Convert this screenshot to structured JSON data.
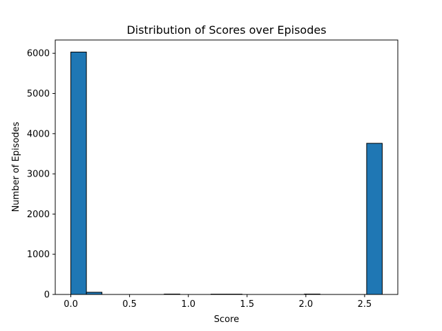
{
  "chart_data": {
    "type": "bar",
    "title": "Distribution of Scores over Episodes",
    "xlabel": "Score",
    "ylabel": "Number of Episodes",
    "xlim": [
      -0.1325,
      2.7825
    ],
    "ylim": [
      0,
      6330
    ],
    "xticks": [
      0.0,
      0.5,
      1.0,
      1.5,
      2.0,
      2.5
    ],
    "xtick_labels": [
      "0.0",
      "0.5",
      "1.0",
      "1.5",
      "2.0",
      "2.5"
    ],
    "yticks": [
      0,
      1000,
      2000,
      3000,
      4000,
      5000,
      6000
    ],
    "ytick_labels": [
      "0",
      "1000",
      "2000",
      "3000",
      "4000",
      "5000",
      "6000"
    ],
    "bin_edges": [
      0.0,
      0.1325,
      0.265,
      0.3975,
      0.53,
      0.6625,
      0.795,
      0.9275,
      1.06,
      1.1925,
      1.325,
      1.4575,
      1.59,
      1.7225,
      1.855,
      1.9875,
      2.12,
      2.2525,
      2.385,
      2.5175,
      2.65
    ],
    "values": [
      6030,
      55,
      0,
      0,
      0,
      0,
      10,
      0,
      0,
      8,
      8,
      0,
      0,
      0,
      0,
      10,
      0,
      0,
      0,
      3760
    ],
    "grid": false,
    "colors": {
      "bar_fill": "#1f77b4",
      "bar_edge": "#000000",
      "axis": "#000000"
    }
  }
}
